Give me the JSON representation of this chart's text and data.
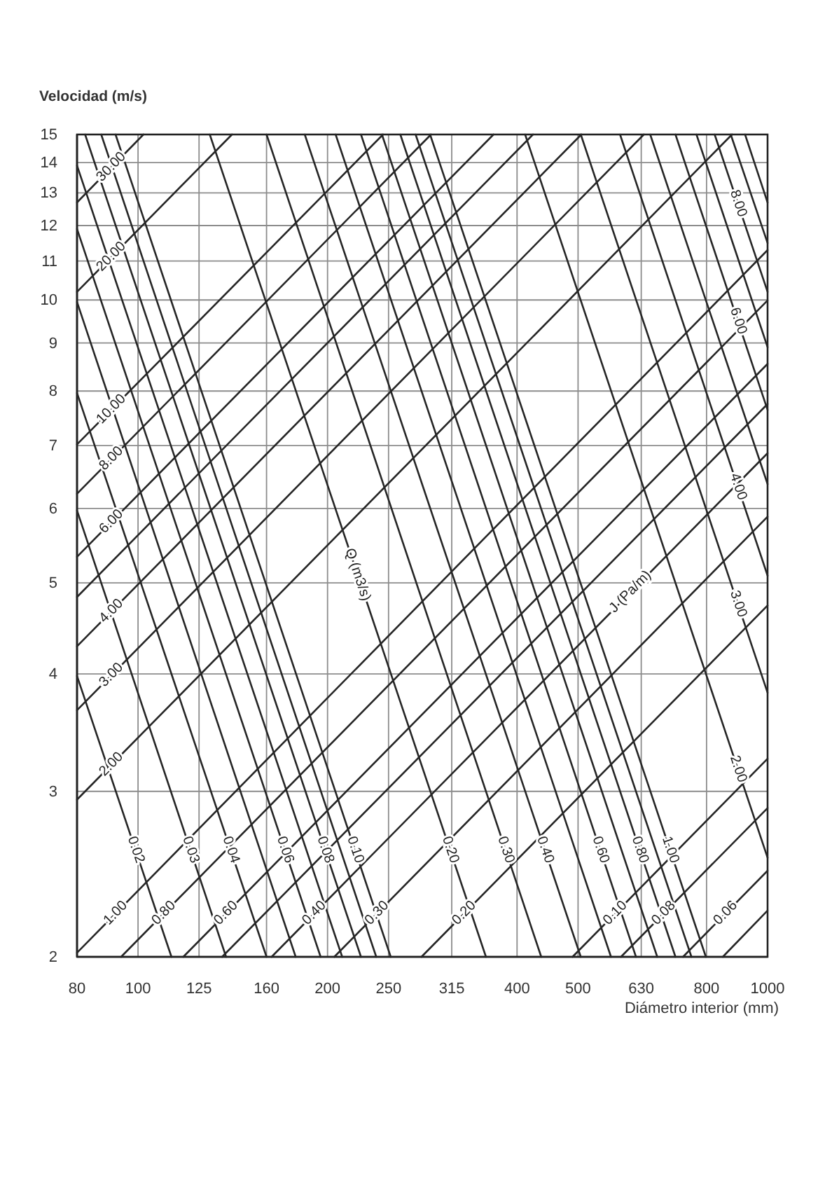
{
  "chart_data": {
    "type": "line",
    "xlabel": "Diámetro interior (mm)",
    "ylabel": "Velocidad (m/s)",
    "log": "xy",
    "grid": true,
    "xlim": [
      80,
      1000
    ],
    "ylim": [
      2,
      15
    ],
    "xticks": [
      80,
      100,
      125,
      160,
      200,
      250,
      315,
      400,
      500,
      630,
      800,
      1000
    ],
    "yticks": [
      2,
      3,
      4,
      5,
      6,
      7,
      8,
      9,
      10,
      11,
      12,
      13,
      14,
      15
    ],
    "annotations": [
      {
        "text": "Q (m3/s)",
        "x": 223,
        "y": 5.1
      },
      {
        "text": "J (Pa/m)",
        "x": 606,
        "y": 4.89
      }
    ],
    "series": [
      {
        "name": "0.02",
        "color": "#262626",
        "x": [
          80,
          113
        ],
        "values": [
          3.98,
          2
        ]
      },
      {
        "name": "0.03",
        "color": "#262626",
        "x": [
          80,
          138
        ],
        "values": [
          5.97,
          2
        ]
      },
      {
        "name": "0.04",
        "color": "#262626",
        "x": [
          80,
          160
        ],
        "values": [
          7.96,
          2
        ]
      },
      {
        "color": "#262626",
        "x": [
          80,
          178
        ],
        "values": [
          9.95,
          2
        ]
      },
      {
        "name": "0.06",
        "color": "#262626",
        "x": [
          80,
          195
        ],
        "values": [
          11.9,
          2
        ]
      },
      {
        "color": "#262626",
        "x": [
          80,
          211
        ],
        "values": [
          13.9,
          2
        ]
      },
      {
        "name": "0.08",
        "color": "#262626",
        "x": [
          82.4,
          226
        ],
        "values": [
          15,
          2
        ]
      },
      {
        "color": "#262626",
        "x": [
          87.4,
          239
        ],
        "values": [
          15,
          2
        ]
      },
      {
        "name": "0.10",
        "color": "#262626",
        "x": [
          92.1,
          252
        ],
        "values": [
          15,
          2
        ]
      },
      {
        "name": "0.20",
        "color": "#262626",
        "x": [
          130,
          357
        ],
        "values": [
          15,
          2
        ]
      },
      {
        "name": "0.30",
        "color": "#262626",
        "x": [
          160,
          437
        ],
        "values": [
          15,
          2
        ]
      },
      {
        "name": "0.40",
        "color": "#262626",
        "x": [
          184,
          505
        ],
        "values": [
          15,
          2
        ]
      },
      {
        "color": "#262626",
        "x": [
          206,
          564
        ],
        "values": [
          15,
          2
        ]
      },
      {
        "name": "0.60",
        "color": "#262626",
        "x": [
          226,
          618
        ],
        "values": [
          15,
          2
        ]
      },
      {
        "color": "#262626",
        "x": [
          244,
          668
        ],
        "values": [
          15,
          2
        ]
      },
      {
        "name": "0.80",
        "color": "#262626",
        "x": [
          261,
          714
        ],
        "values": [
          15,
          2
        ]
      },
      {
        "color": "#262626",
        "x": [
          276,
          757
        ],
        "values": [
          15,
          2
        ]
      },
      {
        "name": "1.00",
        "color": "#262626",
        "x": [
          291,
          798
        ],
        "values": [
          15,
          2
        ]
      },
      {
        "name": "2.00",
        "color": "#262626",
        "x": [
          412,
          1000
        ],
        "values": [
          15,
          2.55
        ]
      },
      {
        "name": "3.00",
        "color": "#262626",
        "x": [
          505,
          1000
        ],
        "values": [
          15,
          3.82
        ]
      },
      {
        "name": "4.00",
        "color": "#262626",
        "x": [
          583,
          1000
        ],
        "values": [
          15,
          5.09
        ]
      },
      {
        "color": "#262626",
        "x": [
          651,
          1000
        ],
        "values": [
          15,
          6.37
        ]
      },
      {
        "name": "6.00",
        "color": "#262626",
        "x": [
          714,
          1000
        ],
        "values": [
          15,
          7.64
        ]
      },
      {
        "color": "#262626",
        "x": [
          771,
          1000
        ],
        "values": [
          15,
          8.91
        ]
      },
      {
        "name": "8.00",
        "color": "#262626",
        "x": [
          824,
          1000
        ],
        "values": [
          15,
          10.2
        ]
      },
      {
        "color": "#262626",
        "x": [
          874,
          1000
        ],
        "values": [
          15,
          11.5
        ]
      },
      {
        "color": "#262626",
        "x": [
          921,
          1000
        ],
        "values": [
          15,
          12.7
        ]
      },
      {
        "color": "#262626",
        "x": [
          849,
          1000
        ],
        "values": [
          2,
          2.24
        ]
      },
      {
        "name": "0.06",
        "color": "#262626",
        "x": [
          734,
          1000
        ],
        "values": [
          2,
          2.47
        ]
      },
      {
        "name": "0.08",
        "color": "#262626",
        "x": [
          585,
          1000
        ],
        "values": [
          2,
          2.88
        ]
      },
      {
        "name": "0.10",
        "color": "#262626",
        "x": [
          490,
          1000
        ],
        "values": [
          2,
          3.25
        ]
      },
      {
        "name": "0.20",
        "color": "#262626",
        "x": [
          282,
          1000
        ],
        "values": [
          2,
          4.73
        ]
      },
      {
        "name": "0.30",
        "color": "#262626",
        "x": [
          205,
          1000
        ],
        "values": [
          2,
          5.88
        ]
      },
      {
        "name": "0.40",
        "color": "#262626",
        "x": [
          163,
          1000
        ],
        "values": [
          2,
          6.87
        ]
      },
      {
        "color": "#262626",
        "x": [
          136,
          1000
        ],
        "values": [
          2,
          7.75
        ]
      },
      {
        "name": "0.60",
        "color": "#262626",
        "x": [
          118,
          1000
        ],
        "values": [
          2,
          8.55
        ]
      },
      {
        "name": "0.80",
        "color": "#262626",
        "x": [
          94,
          1000
        ],
        "values": [
          2,
          9.99
        ]
      },
      {
        "name": "1.00",
        "color": "#262626",
        "x": [
          80,
          1000
        ],
        "values": [
          2.02,
          11.3
        ]
      },
      {
        "name": "2.00",
        "color": "#262626",
        "x": [
          80,
          878
        ],
        "values": [
          2.94,
          15
        ]
      },
      {
        "name": "3.00",
        "color": "#262626",
        "x": [
          80,
          636
        ],
        "values": [
          3.66,
          15
        ]
      },
      {
        "name": "4.00",
        "color": "#262626",
        "x": [
          80,
          506
        ],
        "values": [
          4.28,
          15
        ]
      },
      {
        "color": "#262626",
        "x": [
          80,
          424
        ],
        "values": [
          4.83,
          15
        ]
      },
      {
        "name": "6.00",
        "color": "#262626",
        "x": [
          80,
          367
        ],
        "values": [
          5.33,
          15
        ]
      },
      {
        "name": "8.00",
        "color": "#262626",
        "x": [
          80,
          292
        ],
        "values": [
          6.22,
          15
        ]
      },
      {
        "name": "10.00",
        "color": "#262626",
        "x": [
          80,
          245
        ],
        "values": [
          7.02,
          15
        ]
      },
      {
        "name": "20.00",
        "color": "#262626",
        "x": [
          80,
          141
        ],
        "values": [
          10.2,
          15
        ]
      },
      {
        "name": "30.00",
        "color": "#262626",
        "x": [
          80,
          102
        ],
        "values": [
          12.7,
          15
        ]
      }
    ]
  }
}
